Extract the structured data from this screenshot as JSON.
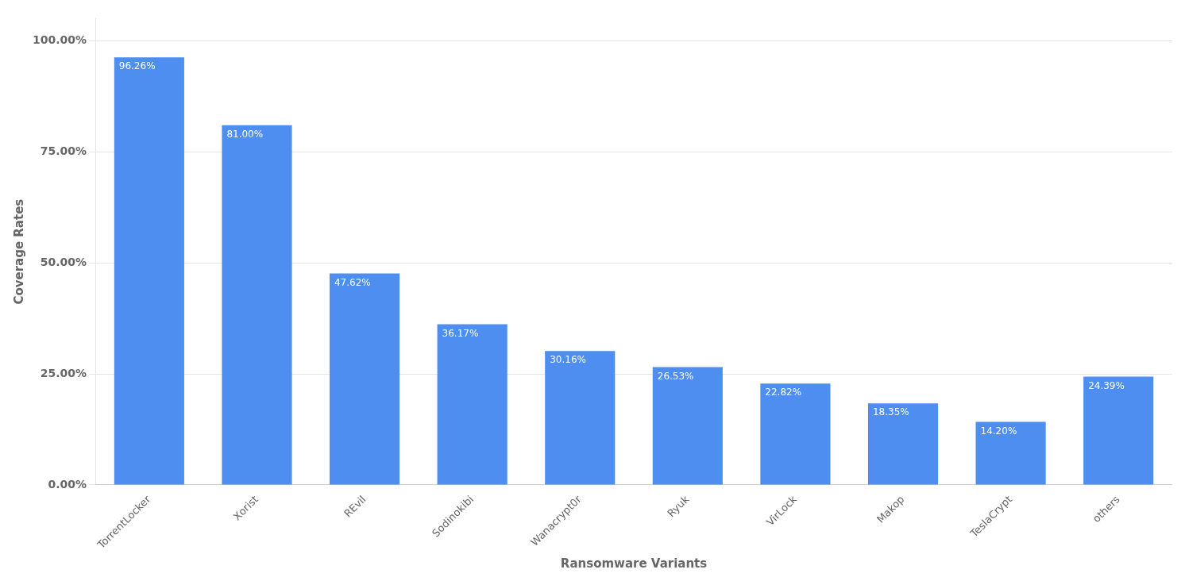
{
  "chart_data": {
    "type": "bar",
    "categories": [
      "TorrentLocker",
      "Xorist",
      "REvil",
      "Sodinokibi",
      "Wanacrypt0r",
      "Ryuk",
      "VirLock",
      "Makop",
      "TeslaCrypt",
      "others"
    ],
    "values": [
      96.26,
      81.0,
      47.62,
      36.17,
      30.16,
      26.53,
      22.82,
      18.35,
      14.2,
      24.39
    ],
    "value_labels": [
      "96.26%",
      "81.00%",
      "47.62%",
      "36.17%",
      "30.16%",
      "26.53%",
      "22.82%",
      "18.35%",
      "14.20%",
      "24.39%"
    ],
    "data_labels": true,
    "color": "#4d8ef0",
    "xlabel": "Ransomware Variants",
    "ylabel": "Coverage Rates",
    "ylim": [
      0,
      105
    ],
    "yticks": [
      {
        "value": 0,
        "label": "0.00%"
      },
      {
        "value": 25,
        "label": "25.00%"
      },
      {
        "value": 50,
        "label": "50.00%"
      },
      {
        "value": 75,
        "label": "75.00%"
      },
      {
        "value": 100,
        "label": "100.00%"
      }
    ],
    "grid": true
  }
}
